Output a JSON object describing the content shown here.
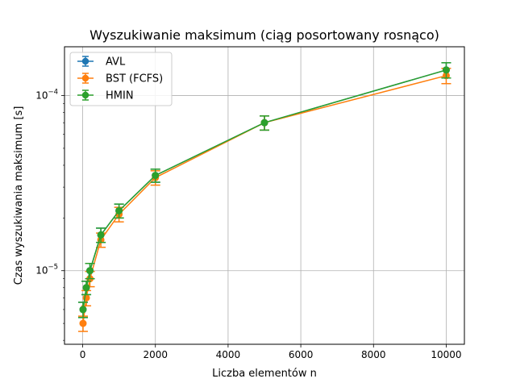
{
  "chart_data": {
    "type": "line",
    "title": "Wyszukiwanie maksimum (ciąg posortowany rosnąco)",
    "xlabel": "Liczba elementów n",
    "ylabel": "Czas wyszukiwania maksimum [s]",
    "x_scale": "linear",
    "y_scale": "log",
    "xlim": [
      -500,
      10500
    ],
    "ylim": [
      3.8e-06,
      0.00019
    ],
    "x_ticks": [
      0,
      2000,
      4000,
      6000,
      8000,
      10000
    ],
    "x_tick_labels": [
      "0",
      "2000",
      "4000",
      "6000",
      "8000",
      "10000"
    ],
    "y_major_ticks": [
      1e-05,
      0.0001
    ],
    "y_tick_labels": [
      {
        "base": "10",
        "exp": "−5"
      },
      {
        "base": "10",
        "exp": "−4"
      }
    ],
    "grid": true,
    "legend_position": "top-left",
    "x": [
      10,
      100,
      200,
      500,
      1000,
      2000,
      5000,
      10000
    ],
    "series": [
      {
        "name": "AVL",
        "color": "#1f77b4",
        "marker": "circle",
        "values": [
          6e-06,
          8e-06,
          1e-05,
          1.6e-05,
          2.2e-05,
          3.5e-05,
          7e-05,
          0.00014
        ],
        "err": [
          6e-07,
          7e-07,
          1e-06,
          1.5e-06,
          2e-06,
          3e-06,
          6.5e-06,
          1.4e-05
        ]
      },
      {
        "name": "BST (FCFS)",
        "color": "#ff7f0e",
        "marker": "circle",
        "values": [
          5e-06,
          7e-06,
          9e-06,
          1.5e-05,
          2.1e-05,
          3.4e-05,
          7e-05,
          0.00013
        ],
        "err": [
          5e-07,
          7e-07,
          9e-07,
          1.4e-06,
          2e-06,
          3.2e-06,
          6.5e-06,
          1.3e-05
        ]
      },
      {
        "name": "HMIN",
        "color": "#2ca02c",
        "marker": "circle",
        "values": [
          6e-06,
          8e-06,
          1e-05,
          1.6e-05,
          2.2e-05,
          3.5e-05,
          7e-05,
          0.00014
        ],
        "err": [
          6e-07,
          7e-07,
          1e-06,
          1.5e-06,
          2e-06,
          3e-06,
          6.5e-06,
          1.4e-05
        ]
      }
    ]
  }
}
